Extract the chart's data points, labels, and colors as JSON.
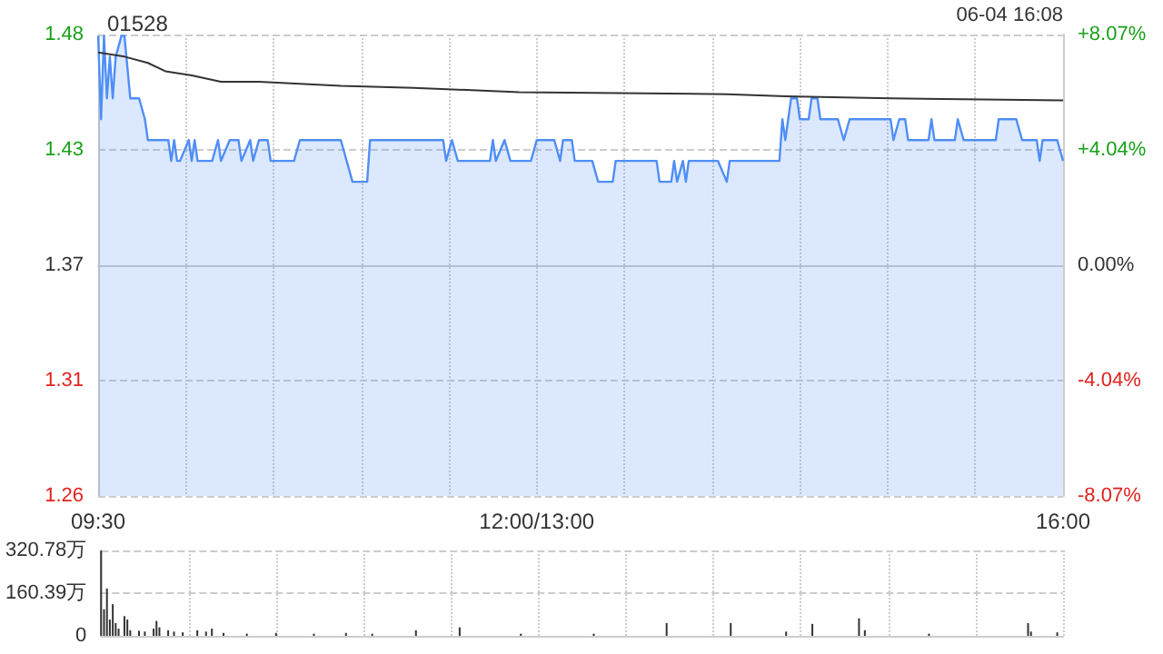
{
  "chart_data": [
    {
      "type": "area",
      "title": "01528",
      "annotations": [
        "06-04 16:08"
      ],
      "categories": [
        "09:30",
        null,
        null,
        null,
        null,
        null,
        null,
        null,
        null,
        null,
        null,
        null,
        null,
        null,
        null,
        null,
        null,
        null,
        null,
        null,
        null,
        null,
        null,
        null,
        null,
        null,
        null,
        null,
        null,
        null,
        null,
        null,
        null,
        null,
        null,
        null,
        null,
        null,
        null,
        null,
        null,
        null,
        null,
        null,
        null,
        null,
        null,
        null,
        null,
        null,
        null,
        null,
        null,
        null,
        null,
        null,
        null,
        null,
        null,
        null,
        null,
        null,
        null,
        null,
        null,
        null,
        null,
        null,
        null,
        null,
        null,
        null,
        null,
        null,
        null,
        null,
        null,
        null,
        null,
        null,
        null,
        null,
        null,
        null,
        null,
        null,
        null,
        null,
        null,
        null,
        null,
        null,
        null,
        null,
        null,
        null,
        null,
        null,
        null,
        null,
        null,
        null,
        null,
        null,
        null,
        null,
        null,
        null,
        null,
        null,
        null,
        null,
        null,
        null,
        null,
        null,
        null,
        null,
        null,
        null,
        null,
        null,
        null,
        null,
        null,
        null,
        null,
        null,
        null,
        null,
        null,
        null,
        null,
        null,
        null,
        null,
        null,
        null,
        null,
        null,
        null,
        null,
        null,
        null,
        null,
        null,
        null,
        null,
        null,
        null,
        "12:00/13:00",
        null,
        null,
        null,
        null,
        null,
        null,
        null,
        null,
        null,
        null,
        null,
        null,
        null,
        null,
        null,
        null,
        null,
        null,
        null,
        null,
        null,
        null,
        null,
        null,
        null,
        null,
        null,
        null,
        null,
        null,
        null,
        null,
        null,
        null,
        null,
        null,
        null,
        null,
        null,
        null,
        null,
        null,
        null,
        null,
        null,
        null,
        null,
        null,
        null,
        null,
        null,
        null,
        null,
        null,
        null,
        null,
        null,
        null,
        null,
        null,
        null,
        null,
        null,
        null,
        null,
        null,
        null,
        null,
        null,
        null,
        null,
        null,
        null,
        null,
        null,
        null,
        null,
        null,
        null,
        null,
        null,
        null,
        null,
        null,
        null,
        null,
        null,
        null,
        null,
        null,
        null,
        null,
        null,
        null,
        null,
        null,
        null,
        null,
        null,
        null,
        null,
        null,
        null,
        null,
        null,
        null,
        null,
        null,
        null,
        null,
        null,
        null,
        null,
        null,
        null,
        null,
        null,
        null,
        null,
        null,
        null,
        null,
        null,
        null,
        null,
        null,
        null,
        null,
        null,
        null,
        null,
        null,
        null,
        null,
        null,
        null,
        null,
        null,
        null,
        null,
        null,
        null,
        null,
        null,
        null,
        null,
        null,
        null,
        null,
        null,
        null,
        null,
        null,
        null,
        null,
        null,
        null,
        null,
        null,
        null,
        null,
        null,
        null,
        null,
        null,
        null,
        null,
        null,
        null,
        null,
        null,
        null,
        null,
        null,
        null,
        null,
        null,
        null,
        null,
        "16:00"
      ],
      "ylim": [
        1.2594,
        1.4806
      ],
      "yticks": [
        {
          "value": 1.2594,
          "label": "1.26"
        },
        {
          "value": 1.3147,
          "label": "1.31"
        },
        {
          "value": 1.37,
          "label": "1.37"
        },
        {
          "value": 1.4253,
          "label": "1.43"
        },
        {
          "value": 1.4806,
          "label": "1.48"
        }
      ],
      "y2lim": [
        -8.07,
        8.07
      ],
      "y2ticks": [
        {
          "value": -8.07,
          "label": "-8.07%"
        },
        {
          "value": -4.04,
          "label": "-4.04%"
        },
        {
          "value": 0,
          "label": "0.00%"
        },
        {
          "value": 4.04,
          "label": "+4.04%"
        },
        {
          "value": 8.07,
          "label": "+8.07%"
        }
      ],
      "grid": true,
      "series": [
        {
          "type": "area",
          "color": "#4f8ef7",
          "values": [
            1.48,
            1.44,
            1.48,
            1.45,
            1.47,
            1.45,
            1.47,
            null,
            1.48,
            1.48,
            null,
            1.45,
            null,
            null,
            1.45,
            null,
            1.44,
            1.43,
            null,
            null,
            null,
            null,
            null,
            null,
            1.43,
            1.42,
            1.43,
            1.42,
            1.42,
            null,
            null,
            1.43,
            1.42,
            1.43,
            1.42,
            null,
            null,
            null,
            null,
            1.42,
            null,
            1.43,
            1.42,
            null,
            null,
            1.43,
            null,
            null,
            1.43,
            1.42,
            null,
            null,
            1.43,
            1.42,
            null,
            1.43,
            null,
            null,
            1.43,
            1.42,
            null,
            null,
            null,
            null,
            null,
            null,
            null,
            1.42,
            null,
            1.43,
            null,
            null,
            null,
            null,
            null,
            null,
            null,
            null,
            null,
            null,
            null,
            null,
            null,
            1.43,
            null,
            null,
            null,
            1.41,
            null,
            null,
            null,
            null,
            1.41,
            1.43,
            null,
            null,
            null,
            null,
            null,
            null,
            null,
            null,
            null,
            null,
            null,
            null,
            null,
            null,
            null,
            null,
            null,
            null,
            null,
            null,
            null,
            null,
            null,
            null,
            1.43,
            1.42,
            null,
            1.43,
            null,
            1.42,
            null,
            null,
            null,
            null,
            null,
            null,
            null,
            null,
            null,
            null,
            1.42,
            1.43,
            1.42,
            null,
            null,
            1.43,
            null,
            1.42,
            null,
            null,
            null,
            null,
            null,
            null,
            1.42,
            null,
            1.43,
            null,
            null,
            null,
            null,
            null,
            1.43,
            null,
            1.42,
            1.43,
            null,
            null,
            1.43,
            1.42,
            null,
            null,
            null,
            null,
            null,
            1.42,
            null,
            1.41,
            null,
            null,
            null,
            null,
            1.41,
            1.42,
            null,
            null,
            null,
            null,
            null,
            null,
            null,
            null,
            null,
            null,
            null,
            null,
            null,
            1.42,
            1.41,
            null,
            null,
            null,
            1.41,
            1.42,
            1.41,
            null,
            1.42,
            1.41,
            1.42,
            null,
            null,
            null,
            null,
            null,
            null,
            null,
            null,
            null,
            1.42,
            null,
            null,
            1.41,
            1.42,
            null,
            null,
            null,
            null,
            null,
            null,
            null,
            null,
            null,
            null,
            null,
            null,
            null,
            null,
            null,
            null,
            1.42,
            1.44,
            1.43,
            null,
            1.45,
            null,
            1.45,
            1.44,
            null,
            null,
            1.44,
            1.45,
            null,
            1.45,
            1.44,
            null,
            null,
            null,
            null,
            null,
            1.44,
            null,
            1.43,
            null,
            1.44,
            null,
            null,
            null,
            null,
            null,
            null,
            null,
            null,
            null,
            null,
            null,
            null,
            null,
            1.44,
            1.43,
            null,
            1.44,
            null,
            1.44,
            1.43,
            null,
            null,
            null,
            null,
            null,
            null,
            1.43,
            1.44,
            1.43,
            null,
            null,
            null,
            null,
            null,
            null,
            1.43,
            1.44,
            null,
            1.43,
            null,
            null,
            null,
            null,
            null,
            null,
            null,
            null,
            null,
            null,
            1.43,
            1.44,
            null,
            null,
            null,
            null,
            null,
            1.44,
            null,
            1.43,
            null,
            null,
            null,
            null,
            1.43,
            1.42,
            1.43,
            null,
            null,
            null,
            null,
            1.43,
            null,
            1.42
          ]
        },
        {
          "type": "line",
          "color": "#333333",
          "values": [
            1.472,
            null,
            null,
            null,
            null,
            null,
            null,
            null,
            null,
            1.47,
            null,
            null,
            null,
            null,
            null,
            null,
            null,
            1.467,
            null,
            null,
            null,
            null,
            null,
            1.463,
            null,
            null,
            null,
            null,
            null,
            null,
            null,
            null,
            1.461,
            null,
            null,
            null,
            null,
            null,
            null,
            null,
            null,
            null,
            1.458,
            null,
            null,
            null,
            null,
            null,
            null,
            null,
            null,
            null,
            null,
            null,
            null,
            1.458,
            null,
            null,
            null,
            null,
            null,
            null,
            null,
            null,
            null,
            null,
            null,
            null,
            null,
            null,
            null,
            null,
            null,
            null,
            null,
            null,
            null,
            null,
            null,
            null,
            null,
            null,
            null,
            1.456,
            null,
            null,
            null,
            null,
            null,
            null,
            null,
            null,
            null,
            null,
            null,
            null,
            null,
            null,
            null,
            null,
            null,
            null,
            null,
            null,
            null,
            null,
            null,
            null,
            1.455,
            null,
            null,
            null,
            null,
            null,
            null,
            null,
            null,
            null,
            null,
            null,
            null,
            null,
            null,
            null,
            null,
            null,
            null,
            null,
            null,
            null,
            null,
            null,
            null,
            null,
            null,
            null,
            null,
            null,
            null,
            null,
            null,
            null,
            null,
            null,
            1.453,
            null,
            null,
            null,
            null,
            null,
            null,
            null,
            null,
            null,
            null,
            null,
            null,
            null,
            null,
            null,
            null,
            null,
            null,
            null,
            null,
            null,
            null,
            null,
            null,
            null,
            null,
            null,
            null,
            null,
            null,
            null,
            null,
            null,
            null,
            null,
            null,
            null,
            null,
            null,
            null,
            null,
            null,
            null,
            null,
            null,
            null,
            null,
            null,
            null,
            null,
            null,
            null,
            null,
            null,
            null,
            null,
            null,
            null,
            null,
            null,
            null,
            null,
            null,
            null,
            null,
            null,
            null,
            null,
            null,
            null,
            1.452,
            null,
            null,
            null,
            null,
            null,
            null,
            null,
            null,
            null,
            null,
            null,
            null,
            null,
            null,
            null,
            null,
            null,
            null,
            null,
            1.451,
            null,
            null,
            null,
            null,
            null,
            null,
            null,
            null,
            null,
            null,
            null,
            null,
            null,
            null,
            null,
            null,
            null,
            null,
            null,
            null,
            null,
            null,
            null,
            null,
            null,
            null,
            null,
            null,
            null,
            null,
            null,
            null,
            null,
            null,
            null,
            1.45,
            null,
            null,
            null,
            null,
            null,
            null,
            null,
            null,
            null,
            null,
            null,
            null,
            null,
            null,
            null,
            null,
            null,
            null,
            null,
            null,
            null,
            null,
            null,
            null,
            null,
            null,
            null,
            null,
            null,
            null,
            null,
            null,
            null,
            null,
            null,
            null,
            null,
            null,
            null,
            null,
            null,
            null,
            null,
            null,
            null,
            null,
            null,
            null,
            null,
            null,
            null,
            null,
            null,
            null,
            null,
            null,
            null,
            null,
            1.449
          ]
        }
      ]
    },
    {
      "type": "bar",
      "color": "#333333",
      "categories": [
        null,
        null,
        null,
        null,
        null,
        null,
        null,
        null,
        null,
        null,
        null,
        null,
        null,
        null,
        null,
        null,
        null,
        null,
        null,
        null,
        null,
        null,
        null,
        null,
        null,
        null,
        null,
        null,
        null,
        null,
        null,
        null,
        null,
        null,
        null,
        null,
        null,
        null,
        null,
        null,
        null,
        null,
        null,
        null,
        null,
        null,
        null,
        null,
        null,
        null,
        null,
        null,
        null,
        null,
        null,
        null,
        null,
        null,
        null,
        null,
        null,
        null,
        null,
        null,
        null,
        null,
        null,
        null,
        null,
        null,
        null,
        null,
        null,
        null,
        null,
        null,
        null,
        null,
        null,
        null,
        null,
        null,
        null,
        null,
        null,
        null,
        null,
        null,
        null,
        null,
        null,
        null,
        null,
        null,
        null,
        null,
        null,
        null,
        null,
        null,
        null,
        null,
        null,
        null,
        null,
        null,
        null,
        null,
        null,
        null,
        null,
        null,
        null,
        null,
        null,
        null,
        null,
        null,
        null,
        null,
        null,
        null,
        null,
        null,
        null,
        null,
        null,
        null,
        null,
        null,
        null,
        null,
        null,
        null,
        null,
        null,
        null,
        null,
        null,
        null,
        null,
        null,
        null,
        null,
        null,
        null,
        null,
        null,
        null,
        null,
        null,
        null,
        null,
        null,
        null,
        null,
        null,
        null,
        null,
        null,
        null,
        null,
        null,
        null,
        null,
        null,
        null,
        null,
        null,
        null,
        null,
        null,
        null,
        null,
        null,
        null,
        null,
        null,
        null,
        null,
        null,
        null,
        null,
        null,
        null,
        null,
        null,
        null,
        null,
        null,
        null,
        null,
        null,
        null,
        null,
        null,
        null,
        null,
        null,
        null,
        null,
        null,
        null,
        null,
        null,
        null,
        null,
        null,
        null,
        null,
        null,
        null,
        null,
        null,
        null,
        null,
        null,
        null,
        null,
        null,
        null,
        null,
        null,
        null,
        null,
        null,
        null,
        null,
        null,
        null,
        null,
        null,
        null,
        null,
        null,
        null,
        null,
        null,
        null,
        null,
        null,
        null,
        null,
        null,
        null,
        null,
        null,
        null,
        null,
        null,
        null,
        null,
        null,
        null,
        null,
        null,
        null,
        null,
        null,
        null,
        null,
        null,
        null,
        null,
        null,
        null,
        null,
        null,
        null,
        null,
        null,
        null,
        null,
        null,
        null,
        null,
        null,
        null,
        null,
        null,
        null,
        null,
        null,
        null,
        null,
        null,
        null,
        null,
        null,
        null,
        null,
        null,
        null,
        null,
        null,
        null,
        null,
        null,
        null,
        null,
        null,
        null,
        null,
        null,
        null,
        null,
        null,
        null,
        null,
        null,
        null,
        null,
        null,
        null,
        null,
        null,
        null,
        null,
        null,
        null,
        null,
        null,
        null,
        null,
        null,
        null,
        null,
        null,
        null,
        null,
        null
      ],
      "ylim": [
        0,
        320.78
      ],
      "yticks": [
        0,
        {
          "value": 160.39,
          "label": "160.39万"
        },
        {
          "value": 320.78,
          "label": "320.78万"
        }
      ],
      "tick_labels": "y",
      "grid": true,
      "values": [
        320,
        100,
        178,
        61,
        119,
        48,
        27,
        null,
        74,
        61,
        21,
        null,
        null,
        19,
        null,
        16,
        null,
        null,
        27,
        56,
        32,
        null,
        null,
        21,
        null,
        16,
        null,
        null,
        13,
        null,
        null,
        null,
        null,
        21,
        null,
        null,
        16,
        null,
        27,
        null,
        null,
        null,
        11,
        null,
        null,
        null,
        null,
        null,
        null,
        null,
        8,
        null,
        null,
        null,
        null,
        null,
        null,
        null,
        null,
        null,
        11,
        null,
        null,
        null,
        null,
        null,
        null,
        null,
        null,
        null,
        null,
        null,
        null,
        8,
        null,
        null,
        null,
        null,
        null,
        null,
        null,
        null,
        null,
        null,
        11,
        null,
        null,
        null,
        null,
        null,
        null,
        null,
        null,
        8,
        null,
        null,
        null,
        null,
        null,
        null,
        null,
        null,
        null,
        null,
        null,
        null,
        null,
        null,
        21,
        null,
        null,
        null,
        null,
        null,
        null,
        null,
        null,
        null,
        null,
        null,
        null,
        null,
        null,
        32,
        null,
        null,
        null,
        null,
        null,
        null,
        null,
        null,
        null,
        null,
        null,
        null,
        null,
        null,
        null,
        null,
        null,
        null,
        null,
        null,
        8,
        null,
        null,
        null,
        null,
        null,
        null,
        null,
        null,
        null,
        null,
        null,
        null,
        null,
        null,
        null,
        null,
        null,
        null,
        null,
        null,
        null,
        null,
        null,
        null,
        8,
        null,
        null,
        null,
        null,
        null,
        null,
        null,
        null,
        null,
        null,
        null,
        null,
        null,
        null,
        null,
        null,
        null,
        null,
        null,
        null,
        null,
        null,
        null,
        null,
        48,
        null,
        null,
        null,
        null,
        null,
        null,
        null,
        null,
        null,
        null,
        null,
        null,
        null,
        null,
        null,
        null,
        null,
        null,
        null,
        null,
        null,
        48,
        null,
        null,
        null,
        null,
        null,
        null,
        null,
        null,
        null,
        null,
        null,
        null,
        null,
        null,
        null,
        null,
        null,
        null,
        16,
        null,
        null,
        null,
        null,
        null,
        null,
        null,
        null,
        45,
        null,
        null,
        null,
        null,
        null,
        null,
        null,
        null,
        null,
        null,
        null,
        null,
        null,
        null,
        null,
        66,
        null,
        21,
        null,
        null,
        null,
        null,
        null,
        null,
        null,
        null,
        null,
        null,
        null,
        null,
        null,
        null,
        null,
        null,
        null,
        null,
        null,
        null,
        null,
        8,
        null,
        null,
        null,
        null,
        null,
        null,
        null,
        null,
        null,
        null,
        null,
        null,
        null,
        null,
        null,
        null,
        null,
        null,
        null,
        null,
        null,
        null,
        null,
        null,
        null,
        null,
        null,
        null,
        null,
        null,
        null,
        null,
        null,
        48,
        16,
        null,
        null,
        null,
        null,
        null,
        null,
        null,
        null,
        13,
        null,
        null
      ]
    }
  ]
}
